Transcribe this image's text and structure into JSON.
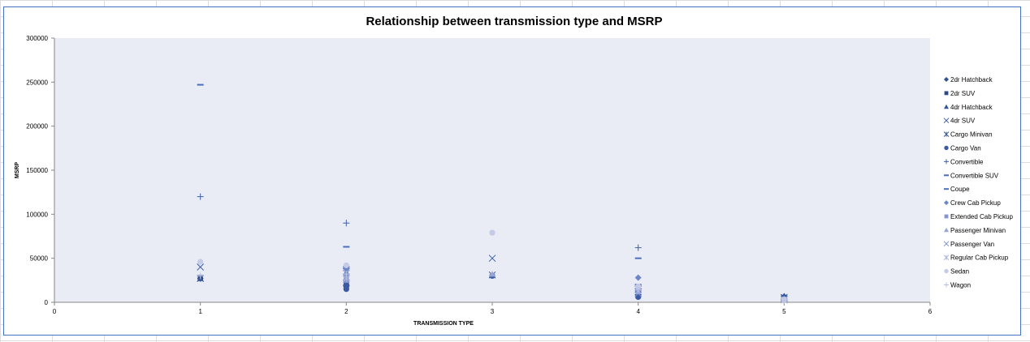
{
  "chart_data": {
    "type": "scatter",
    "title": "Relationship between transmission type and MSRP",
    "xlabel": "TRANSMISSION   TYPE",
    "ylabel": "MSRP",
    "xlim": [
      0,
      6
    ],
    "ylim": [
      0,
      300000
    ],
    "x_ticks": [
      0,
      1,
      2,
      3,
      4,
      5,
      6
    ],
    "y_ticks": [
      0,
      50000,
      100000,
      150000,
      200000,
      250000,
      300000
    ],
    "grid": false,
    "legend_position": "right",
    "plot_background": "#e9ebf5",
    "series": [
      {
        "name": "2dr Hatchback",
        "marker": "diamond",
        "color": "#2f4f8f",
        "points": [
          [
            1,
            27000
          ],
          [
            2,
            20000
          ],
          [
            2,
            23000
          ],
          [
            4,
            8000
          ],
          [
            5,
            6500
          ]
        ]
      },
      {
        "name": "2dr SUV",
        "marker": "square",
        "color": "#2e4a86",
        "points": [
          [
            1,
            28000
          ],
          [
            2,
            18000
          ],
          [
            2,
            24000
          ],
          [
            4,
            10000
          ],
          [
            5,
            5000
          ]
        ]
      },
      {
        "name": "4dr Hatchback",
        "marker": "triangle",
        "color": "#34559a",
        "points": [
          [
            1,
            27000
          ],
          [
            2,
            21000
          ],
          [
            3,
            31000
          ],
          [
            4,
            9000
          ],
          [
            5,
            7000
          ]
        ]
      },
      {
        "name": "4dr SUV",
        "marker": "x",
        "color": "#3b5ea8",
        "points": [
          [
            1,
            40000
          ],
          [
            2,
            35000
          ],
          [
            3,
            50000
          ],
          [
            4,
            15000
          ],
          [
            5,
            4000
          ]
        ]
      },
      {
        "name": "Cargo Minivan",
        "marker": "star",
        "color": "#3c5a9e",
        "points": [
          [
            1,
            27000
          ],
          [
            2,
            22000
          ],
          [
            3,
            31000
          ],
          [
            4,
            12000
          ],
          [
            5,
            5500
          ]
        ]
      },
      {
        "name": "Cargo Van",
        "marker": "circle",
        "color": "#3a5ba3",
        "points": [
          [
            2,
            15000
          ],
          [
            2,
            18000
          ],
          [
            2,
            20000
          ],
          [
            3,
            30000
          ],
          [
            4,
            6000
          ],
          [
            5,
            4500
          ]
        ]
      },
      {
        "name": "Convertible",
        "marker": "plus",
        "color": "#3f62ad",
        "points": [
          [
            1,
            120000
          ],
          [
            2,
            90000
          ],
          [
            4,
            62000
          ],
          [
            5,
            3000
          ]
        ]
      },
      {
        "name": "Convertible SUV",
        "marker": "dash",
        "color": "#4a6bb5",
        "points": [
          [
            2,
            40000
          ],
          [
            4,
            20000
          ]
        ]
      },
      {
        "name": "Coupe",
        "marker": "dash",
        "color": "#4a6fc0",
        "points": [
          [
            1,
            247000
          ],
          [
            2,
            63000
          ],
          [
            4,
            50000
          ],
          [
            5,
            2500
          ]
        ]
      },
      {
        "name": "Crew Cab Pickup",
        "marker": "diamond",
        "color": "#6e86c8",
        "points": [
          [
            2,
            38000
          ],
          [
            4,
            28000
          ],
          [
            5,
            4000
          ]
        ]
      },
      {
        "name": "Extended Cab Pickup",
        "marker": "square",
        "color": "#8596cf",
        "points": [
          [
            2,
            30000
          ],
          [
            2,
            25000
          ],
          [
            4,
            15000
          ],
          [
            5,
            3500
          ]
        ]
      },
      {
        "name": "Passenger Minivan",
        "marker": "triangle",
        "color": "#98a6d4",
        "points": [
          [
            2,
            28000
          ],
          [
            3,
            32000
          ],
          [
            4,
            12000
          ],
          [
            5,
            3000
          ]
        ]
      },
      {
        "name": "Passenger Van",
        "marker": "x",
        "color": "#7d92cc",
        "points": [
          [
            2,
            33000
          ],
          [
            4,
            10000
          ],
          [
            5,
            2800
          ]
        ]
      },
      {
        "name": "Regular Cab Pickup",
        "marker": "star",
        "color": "#a9b4dc",
        "points": [
          [
            2,
            27000
          ],
          [
            4,
            13000
          ],
          [
            5,
            2500
          ]
        ]
      },
      {
        "name": "Sedan",
        "marker": "circle",
        "color": "#c5cbe6",
        "points": [
          [
            1,
            46000
          ],
          [
            2,
            42000
          ],
          [
            3,
            79000
          ],
          [
            4,
            18000
          ],
          [
            5,
            3000
          ]
        ]
      },
      {
        "name": "Wagon",
        "marker": "plus",
        "color": "#b9c2e2",
        "points": [
          [
            1,
            30000
          ],
          [
            2,
            32000
          ],
          [
            4,
            14000
          ],
          [
            5,
            2000
          ]
        ]
      }
    ]
  }
}
